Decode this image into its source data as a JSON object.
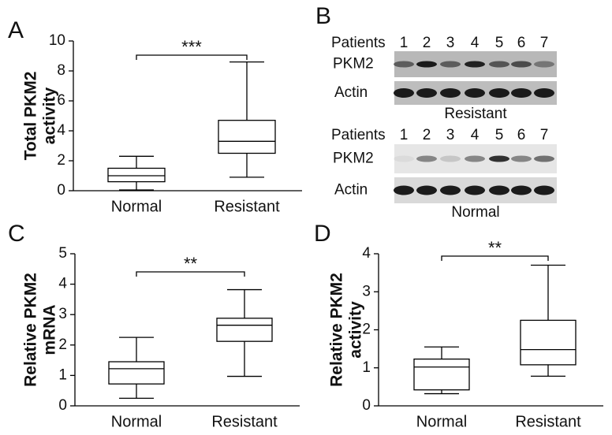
{
  "chart_data": [
    {
      "type": "box",
      "panel": "A",
      "ylabel": [
        "Total PKM2",
        "activity"
      ],
      "categories": [
        "Normal",
        "Resistant"
      ],
      "boxes": [
        {
          "min": 0.05,
          "q1": 0.6,
          "median": 1.0,
          "q3": 1.5,
          "max": 2.3
        },
        {
          "min": 0.9,
          "q1": 2.5,
          "median": 3.3,
          "q3": 4.7,
          "max": 8.6
        }
      ],
      "ylim": [
        0,
        10
      ],
      "yticks": [
        0,
        2,
        4,
        6,
        8,
        10
      ],
      "annotation": "***",
      "color": "#000000"
    },
    {
      "type": "box",
      "panel": "C",
      "ylabel": [
        "Relative PKM2",
        "mRNA"
      ],
      "categories": [
        "Normal",
        "Resistant"
      ],
      "boxes": [
        {
          "min": 0.25,
          "q1": 0.72,
          "median": 1.22,
          "q3": 1.45,
          "max": 2.25
        },
        {
          "min": 0.97,
          "q1": 2.12,
          "median": 2.65,
          "q3": 2.88,
          "max": 3.82
        }
      ],
      "ylim": [
        0,
        5
      ],
      "yticks": [
        0,
        1,
        2,
        3,
        4,
        5
      ],
      "annotation": "**",
      "color": "#000000"
    },
    {
      "type": "box",
      "panel": "D",
      "ylabel": [
        "Relative PKM2",
        "activity"
      ],
      "categories": [
        "Normal",
        "Resistant"
      ],
      "boxes": [
        {
          "min": 0.32,
          "q1": 0.42,
          "median": 1.02,
          "q3": 1.23,
          "max": 1.55
        },
        {
          "min": 0.78,
          "q1": 1.08,
          "median": 1.48,
          "q3": 2.25,
          "max": 3.7
        }
      ],
      "ylim": [
        0,
        4
      ],
      "yticks": [
        0,
        1,
        2,
        3,
        4
      ],
      "annotation": "**",
      "color": "#000000"
    }
  ],
  "blot": {
    "panel": "B",
    "groups": [
      {
        "patients_label": "Patients",
        "lanes": [
          "1",
          "2",
          "3",
          "4",
          "5",
          "6",
          "7"
        ],
        "rows": [
          "PKM2",
          "Actin"
        ],
        "group": "Resistant"
      },
      {
        "patients_label": "Patients",
        "lanes": [
          "1",
          "2",
          "3",
          "4",
          "5",
          "6",
          "7"
        ],
        "rows": [
          "PKM2",
          "Actin"
        ],
        "group": "Normal"
      }
    ]
  }
}
